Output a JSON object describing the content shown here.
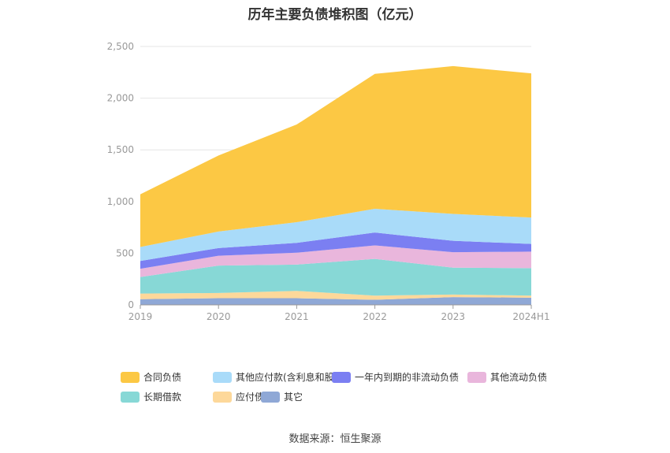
{
  "chart_data": {
    "type": "area",
    "stacked": true,
    "title": "历年主要负债堆积图（亿元）",
    "categories": [
      "2019",
      "2020",
      "2021",
      "2022",
      "2023",
      "2024H1"
    ],
    "ylim": [
      0,
      2500
    ],
    "yticks": [
      "0",
      "500",
      "1,000",
      "1,500",
      "2,000",
      "2,500"
    ],
    "ytick_values": [
      0,
      500,
      1000,
      1500,
      2000,
      2500
    ],
    "grid": true,
    "legend_position": "bottom",
    "series": [
      {
        "name": "其它",
        "color": "#8fa8d6",
        "values": [
          55,
          65,
          65,
          50,
          75,
          70
        ]
      },
      {
        "name": "应付债券",
        "color": "#fdd89a",
        "values": [
          55,
          50,
          70,
          40,
          25,
          20
        ]
      },
      {
        "name": "长期借款",
        "color": "#87d8d6",
        "values": [
          160,
          265,
          255,
          355,
          260,
          265
        ]
      },
      {
        "name": "其他流动负债",
        "color": "#e9b6dc",
        "values": [
          80,
          95,
          115,
          130,
          150,
          160
        ]
      },
      {
        "name": "一年内到期的非流动负债",
        "color": "#7b7ff2",
        "values": [
          75,
          75,
          95,
          125,
          110,
          75
        ]
      },
      {
        "name": "其他应付款(含利息和股利)",
        "color": "#a9dbf9",
        "values": [
          135,
          160,
          200,
          230,
          260,
          255
        ]
      },
      {
        "name": "合同负债",
        "color": "#fcc844",
        "values": [
          510,
          735,
          945,
          1305,
          1430,
          1395
        ]
      }
    ]
  },
  "legend_order": [
    {
      "name": "合同负债",
      "color": "#fcc844"
    },
    {
      "name": "其他应付款(含利息和股利)",
      "color": "#a9dbf9"
    },
    {
      "name": "一年内到期的非流动负债",
      "color": "#7b7ff2"
    },
    {
      "name": "其他流动负债",
      "color": "#e9b6dc"
    },
    {
      "name": "长期借款",
      "color": "#87d8d6"
    },
    {
      "name": "应付债券",
      "color": "#fdd89a"
    },
    {
      "name": "其它",
      "color": "#8fa8d6"
    }
  ],
  "source": "数据来源：恒生聚源"
}
